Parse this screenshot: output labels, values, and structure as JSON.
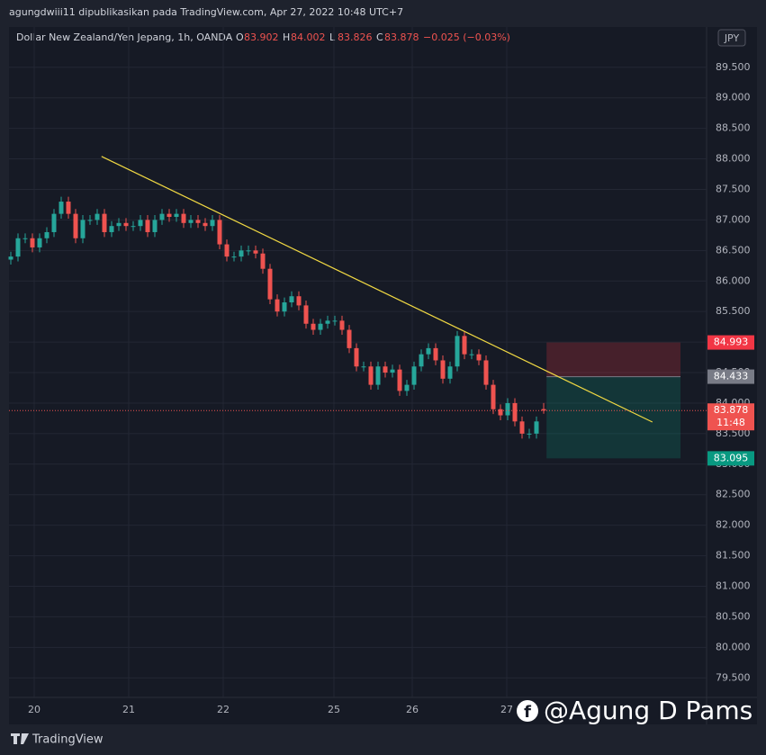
{
  "header": {
    "publisher": "agungdwiii11 dipublikasikan pada TradingView.com, Apr 27, 2022 10:48 UTC+7"
  },
  "chart_data": {
    "type": "candlestick",
    "symbol": "Dollar New Zealand/Yen Jepang, 1h, OANDA",
    "ohlc_labels": [
      "O",
      "H",
      "L",
      "C"
    ],
    "change": "−0.025 (−0.03%)",
    "currency": "JPY",
    "up_color": "#26a69a",
    "down_color": "#ef5350",
    "open": [
      86.35,
      86.4,
      86.7,
      86.7,
      86.55,
      86.7,
      86.8,
      87.1,
      87.3,
      87.1,
      86.7,
      87.0,
      87.0,
      87.1,
      86.8,
      86.9,
      86.95,
      86.9,
      86.9,
      87.0,
      86.8,
      87.0,
      87.1,
      87.05,
      87.1,
      86.95,
      87.0,
      86.95,
      86.9,
      87.0,
      86.6,
      86.4,
      86.4,
      86.5,
      86.5,
      86.45,
      86.2,
      85.7,
      85.5,
      85.65,
      85.75,
      85.6,
      85.3,
      85.2,
      85.3,
      85.35,
      85.35,
      85.2,
      84.9,
      84.6,
      84.6,
      84.3,
      84.6,
      84.5,
      84.55,
      84.2,
      84.3,
      84.6,
      84.8,
      84.9,
      84.7,
      84.4,
      84.6,
      85.1,
      84.8,
      84.8,
      84.7,
      84.3,
      83.9,
      83.8,
      84.0,
      83.7,
      83.5,
      83.5,
      83.902
    ],
    "high": [
      86.48,
      86.78,
      86.78,
      86.78,
      86.78,
      86.88,
      87.18,
      87.38,
      87.38,
      87.18,
      87.08,
      87.08,
      87.18,
      87.18,
      86.98,
      87.03,
      87.03,
      86.98,
      87.08,
      87.08,
      87.08,
      87.18,
      87.18,
      87.18,
      87.18,
      87.08,
      87.08,
      87.03,
      87.08,
      87.08,
      86.68,
      86.48,
      86.58,
      86.58,
      86.58,
      86.53,
      86.28,
      85.78,
      85.73,
      85.83,
      85.83,
      85.68,
      85.38,
      85.38,
      85.43,
      85.43,
      85.43,
      85.28,
      84.98,
      84.68,
      84.68,
      84.68,
      84.68,
      84.63,
      84.63,
      84.38,
      84.68,
      84.88,
      84.98,
      84.98,
      84.78,
      84.68,
      85.18,
      85.18,
      84.88,
      84.88,
      84.78,
      84.38,
      83.98,
      84.08,
      84.08,
      83.78,
      83.58,
      83.78,
      84.002
    ],
    "low": [
      86.27,
      86.32,
      86.62,
      86.47,
      86.47,
      86.62,
      86.72,
      87.02,
      87.02,
      86.62,
      86.62,
      86.92,
      86.92,
      86.72,
      86.72,
      86.82,
      86.82,
      86.82,
      86.82,
      86.72,
      86.72,
      86.92,
      86.97,
      86.97,
      86.87,
      86.87,
      86.87,
      86.82,
      86.82,
      86.52,
      86.32,
      86.32,
      86.32,
      86.42,
      86.37,
      86.12,
      85.62,
      85.42,
      85.42,
      85.57,
      85.52,
      85.22,
      85.12,
      85.12,
      85.22,
      85.27,
      85.12,
      84.82,
      84.52,
      84.52,
      84.22,
      84.22,
      84.42,
      84.42,
      84.12,
      84.12,
      84.22,
      84.52,
      84.72,
      84.62,
      84.32,
      84.32,
      84.52,
      84.72,
      84.72,
      84.62,
      84.22,
      83.82,
      83.72,
      83.72,
      83.62,
      83.42,
      83.42,
      83.42,
      83.826
    ],
    "close": [
      86.4,
      86.7,
      86.7,
      86.55,
      86.7,
      86.8,
      87.1,
      87.3,
      87.1,
      86.7,
      87.0,
      87.0,
      87.1,
      86.8,
      86.9,
      86.95,
      86.9,
      86.9,
      87.0,
      86.8,
      87.0,
      87.1,
      87.05,
      87.1,
      86.95,
      87.0,
      86.95,
      86.9,
      87.0,
      86.6,
      86.4,
      86.4,
      86.5,
      86.5,
      86.45,
      86.2,
      85.7,
      85.5,
      85.65,
      85.75,
      85.6,
      85.3,
      85.2,
      85.3,
      85.35,
      85.35,
      85.2,
      84.9,
      84.6,
      84.6,
      84.3,
      84.6,
      84.5,
      84.55,
      84.2,
      84.3,
      84.6,
      84.8,
      84.9,
      84.7,
      84.4,
      84.6,
      85.1,
      84.8,
      84.8,
      84.7,
      84.3,
      83.9,
      83.8,
      84.0,
      83.7,
      83.5,
      83.5,
      83.7,
      83.878
    ],
    "countdown": "11:48",
    "trendline": {
      "x": [
        12.6,
        89.1
      ],
      "y": [
        88.04,
        83.69
      ],
      "color": "#f0d843"
    },
    "position": {
      "x": [
        74.4,
        93
      ],
      "entry": 84.433,
      "stop": 84.993,
      "target": 83.095
    },
    "xlim": [
      -0.25,
      96.625
    ],
    "ylim": [
      79.18,
      90.16
    ],
    "xticks": [
      {
        "value": 3.25,
        "label": "20"
      },
      {
        "value": 16.375,
        "label": "21"
      },
      {
        "value": 29.5,
        "label": "22"
      },
      {
        "value": 44.875,
        "label": "25"
      },
      {
        "value": 55.75,
        "label": "26"
      },
      {
        "value": 68.875,
        "label": "27"
      }
    ],
    "yticks": [
      {
        "value": 79.5,
        "label": "79.500"
      },
      {
        "value": 80,
        "label": "80.000"
      },
      {
        "value": 80.5,
        "label": "80.500"
      },
      {
        "value": 81,
        "label": "81.000"
      },
      {
        "value": 81.5,
        "label": "81.500"
      },
      {
        "value": 82,
        "label": "82.000"
      },
      {
        "value": 82.5,
        "label": "82.500"
      },
      {
        "value": 83,
        "label": "83.000"
      },
      {
        "value": 83.5,
        "label": "83.500"
      },
      {
        "value": 84,
        "label": "84.000"
      },
      {
        "value": 84.5,
        "label": "84.500"
      },
      {
        "value": 85,
        "label": "85.000"
      },
      {
        "value": 85.5,
        "label": "85.500"
      },
      {
        "value": 86,
        "label": "86.000"
      },
      {
        "value": 86.5,
        "label": "86.500"
      },
      {
        "value": 87,
        "label": "87.000"
      },
      {
        "value": 87.5,
        "label": "87.500"
      },
      {
        "value": 88,
        "label": "88.000"
      },
      {
        "value": 88.5,
        "label": "88.500"
      },
      {
        "value": 89,
        "label": "89.000"
      },
      {
        "value": 89.5,
        "label": "89.500"
      }
    ],
    "grid": true
  },
  "watermark": "@Agung D Pams",
  "brand": "TradingView"
}
